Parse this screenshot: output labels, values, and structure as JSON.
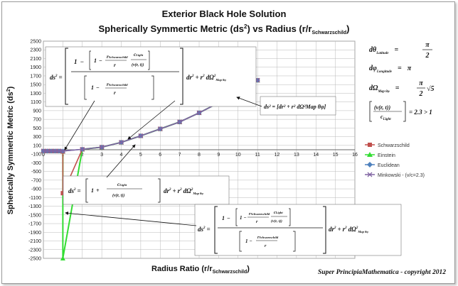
{
  "chart_data": {
    "type": "line",
    "title": "Exterior Black Hole Solution",
    "subtitle": "Spherically Symmertic Metric (ds",
    "subtitle_sup": "2",
    "subtitle_tail": ") vs Radius (r/r",
    "subtitle_sub": "Schwarzschild",
    "subtitle_end": ")",
    "xlabel": "Radius Ratio (r/r",
    "xlabel_sub": "Schwarzschild",
    "xlabel_end": ")",
    "ylabel": "Spherically Symmertic Metric (ds",
    "ylabel_sup": "2",
    "ylabel_end": ")",
    "xlim": [
      0,
      16
    ],
    "ylim": [
      -2500,
      2500
    ],
    "x_ticks": [
      "0",
      "1",
      "2",
      "3",
      "4",
      "5",
      "6",
      "7",
      "8",
      "9",
      "10",
      "11",
      "12",
      "13",
      "14",
      "15",
      "16"
    ],
    "y_ticks": [
      "2500",
      "2300",
      "2100",
      "1900",
      "1700",
      "1500",
      "1300",
      "1100",
      "900",
      "700",
      "500",
      "300",
      "100",
      "-100",
      "-300",
      "-500",
      "-700",
      "-900",
      "-1100",
      "-1300",
      "-1500",
      "-1700",
      "-1900",
      "-2100",
      "-2300",
      "-2500"
    ],
    "grid": true,
    "legend_position": "right",
    "series": [
      {
        "name": "Schwarzschild",
        "color": "#c0504d",
        "marker": "square",
        "x": [
          0,
          0.2,
          0.4,
          0.6,
          0.8,
          1,
          1,
          2,
          3,
          4,
          5,
          6,
          7,
          8,
          9,
          10,
          11
        ],
        "y": [
          -30,
          -30,
          -30,
          -30,
          -30,
          -40,
          -1000,
          10,
          60,
          170,
          320,
          480,
          640,
          850,
          1080,
          1330,
          1600
        ]
      },
      {
        "name": "Einstein",
        "color": "#33dd33",
        "marker": "triangle",
        "x": [
          0,
          0.2,
          0.4,
          0.6,
          0.8,
          1,
          1,
          2,
          3,
          4,
          5,
          6,
          7,
          8,
          9,
          10,
          11
        ],
        "y": [
          -30,
          -30,
          -30,
          -30,
          -30,
          -40,
          -2500,
          10,
          60,
          170,
          320,
          480,
          640,
          850,
          1080,
          1330,
          1600
        ]
      },
      {
        "name": "Euclidean",
        "color": "#4f81bd",
        "marker": "diamond",
        "x": [
          0,
          0.2,
          0.4,
          0.6,
          0.8,
          1,
          2,
          3,
          4,
          5,
          6,
          7,
          8,
          9,
          10,
          11
        ],
        "y": [
          -30,
          -30,
          -30,
          -30,
          -30,
          -30,
          10,
          60,
          170,
          320,
          480,
          640,
          850,
          1080,
          1330,
          1600
        ]
      },
      {
        "name": "Minkowski - (v/c=2.3)",
        "color": "#8064a2",
        "marker": "cross",
        "x": [
          0,
          0.2,
          0.4,
          0.6,
          0.8,
          1,
          2,
          3,
          4,
          5,
          6,
          7,
          8,
          9,
          10,
          11
        ],
        "y": [
          -30,
          -30,
          -30,
          -30,
          -30,
          -30,
          10,
          60,
          170,
          320,
          480,
          640,
          850,
          1080,
          1330,
          1600
        ]
      }
    ],
    "annotations": {
      "eq_theta_lhs": "dθ",
      "eq_theta_sub": "Latitude",
      "eq_theta_rhs_num": "π",
      "eq_theta_rhs_den": "2",
      "eq_phi_lhs": "dφ",
      "eq_phi_sub": "Longitude",
      "eq_phi_rhs": "π",
      "eq_omega_lhs": "dΩ",
      "eq_omega_sub": "Map θφ",
      "eq_omega_rhs_num": "π",
      "eq_omega_rhs_den": "2",
      "eq_omega_root": "√5",
      "eq_ratio_num": "(v(r, t))",
      "eq_ratio_den": "c",
      "eq_ratio_den_sub": "Light",
      "eq_ratio_rhs": "= 2.3 > 1",
      "ds2": "ds",
      "r_schw": "r",
      "r_schw_sub": "Schwarzschild",
      "r": "r",
      "c_light": "c",
      "c_light_sub": "Light",
      "v_rt": "(v(r, t))",
      "dr2": "dr",
      "r2": "r",
      "d_omega2": "dΩ",
      "map": "Map θφ",
      "one": "1",
      "minus": "−",
      "plus": "+",
      "equals": "=",
      "two": "2",
      "euclid_formula": "ds² = [dr² + r² dΩ²Map θφ]"
    },
    "copyright": "Super PrincipiaMathematica - copyright 2012"
  }
}
